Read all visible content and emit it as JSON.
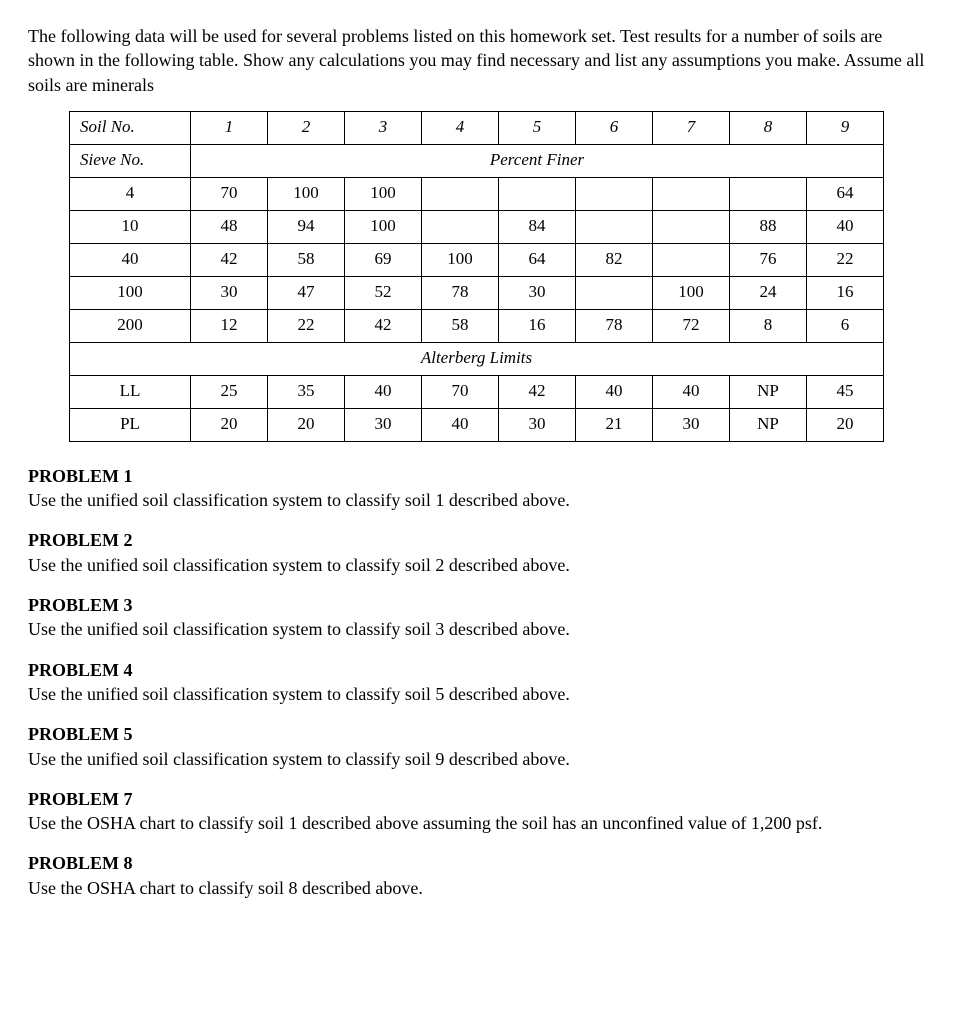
{
  "intro": "The following data will be used for several problems listed on this homework set. Test results for a number of soils are shown in the following table.  Show any calculations you may find necessary and list any assumptions you make. Assume all soils are minerals",
  "table": {
    "soilNoLabel": "Soil No.",
    "sieveNoLabel": "Sieve No.",
    "percentFinerLabel": "Percent Finer",
    "alterbergLabel": "Alterberg Limits",
    "soilNumbers": [
      "1",
      "2",
      "3",
      "4",
      "5",
      "6",
      "7",
      "8",
      "9"
    ],
    "sieves": [
      {
        "name": "4",
        "vals": [
          "70",
          "100",
          "100",
          "",
          "",
          "",
          "",
          "",
          "64"
        ]
      },
      {
        "name": "10",
        "vals": [
          "48",
          "94",
          "100",
          "",
          "84",
          "",
          "",
          "88",
          "40"
        ]
      },
      {
        "name": "40",
        "vals": [
          "42",
          "58",
          "69",
          "100",
          "64",
          "82",
          "",
          "76",
          "22"
        ]
      },
      {
        "name": "100",
        "vals": [
          "30",
          "47",
          "52",
          "78",
          "30",
          "",
          "100",
          "24",
          "16"
        ]
      },
      {
        "name": "200",
        "vals": [
          "12",
          "22",
          "42",
          "58",
          "16",
          "78",
          "72",
          "8",
          "6"
        ]
      }
    ],
    "limits": [
      {
        "name": "LL",
        "vals": [
          "25",
          "35",
          "40",
          "70",
          "42",
          "40",
          "40",
          "NP",
          "45"
        ]
      },
      {
        "name": "PL",
        "vals": [
          "20",
          "20",
          "30",
          "40",
          "30",
          "21",
          "30",
          "NP",
          "20"
        ]
      }
    ]
  },
  "problems": [
    {
      "title": "PROBLEM 1",
      "text": "Use the unified soil classification system to classify soil 1 described above."
    },
    {
      "title": "PROBLEM 2",
      "text": "Use the unified soil classification system to classify soil 2 described above."
    },
    {
      "title": "PROBLEM 3",
      "text": "Use the unified soil classification system to classify soil 3 described above."
    },
    {
      "title": "PROBLEM 4",
      "text": "Use the unified soil classification system to classify soil 5 described above."
    },
    {
      "title": "PROBLEM 5",
      "text": "Use the unified soil classification system to classify soil 9 described above."
    },
    {
      "title": "PROBLEM 7",
      "text": "Use the OSHA chart to classify soil 1 described above assuming the soil has an unconfined value of 1,200 psf."
    },
    {
      "title": "PROBLEM 8",
      "text": "Use the OSHA chart to classify soil 8 described above."
    }
  ]
}
